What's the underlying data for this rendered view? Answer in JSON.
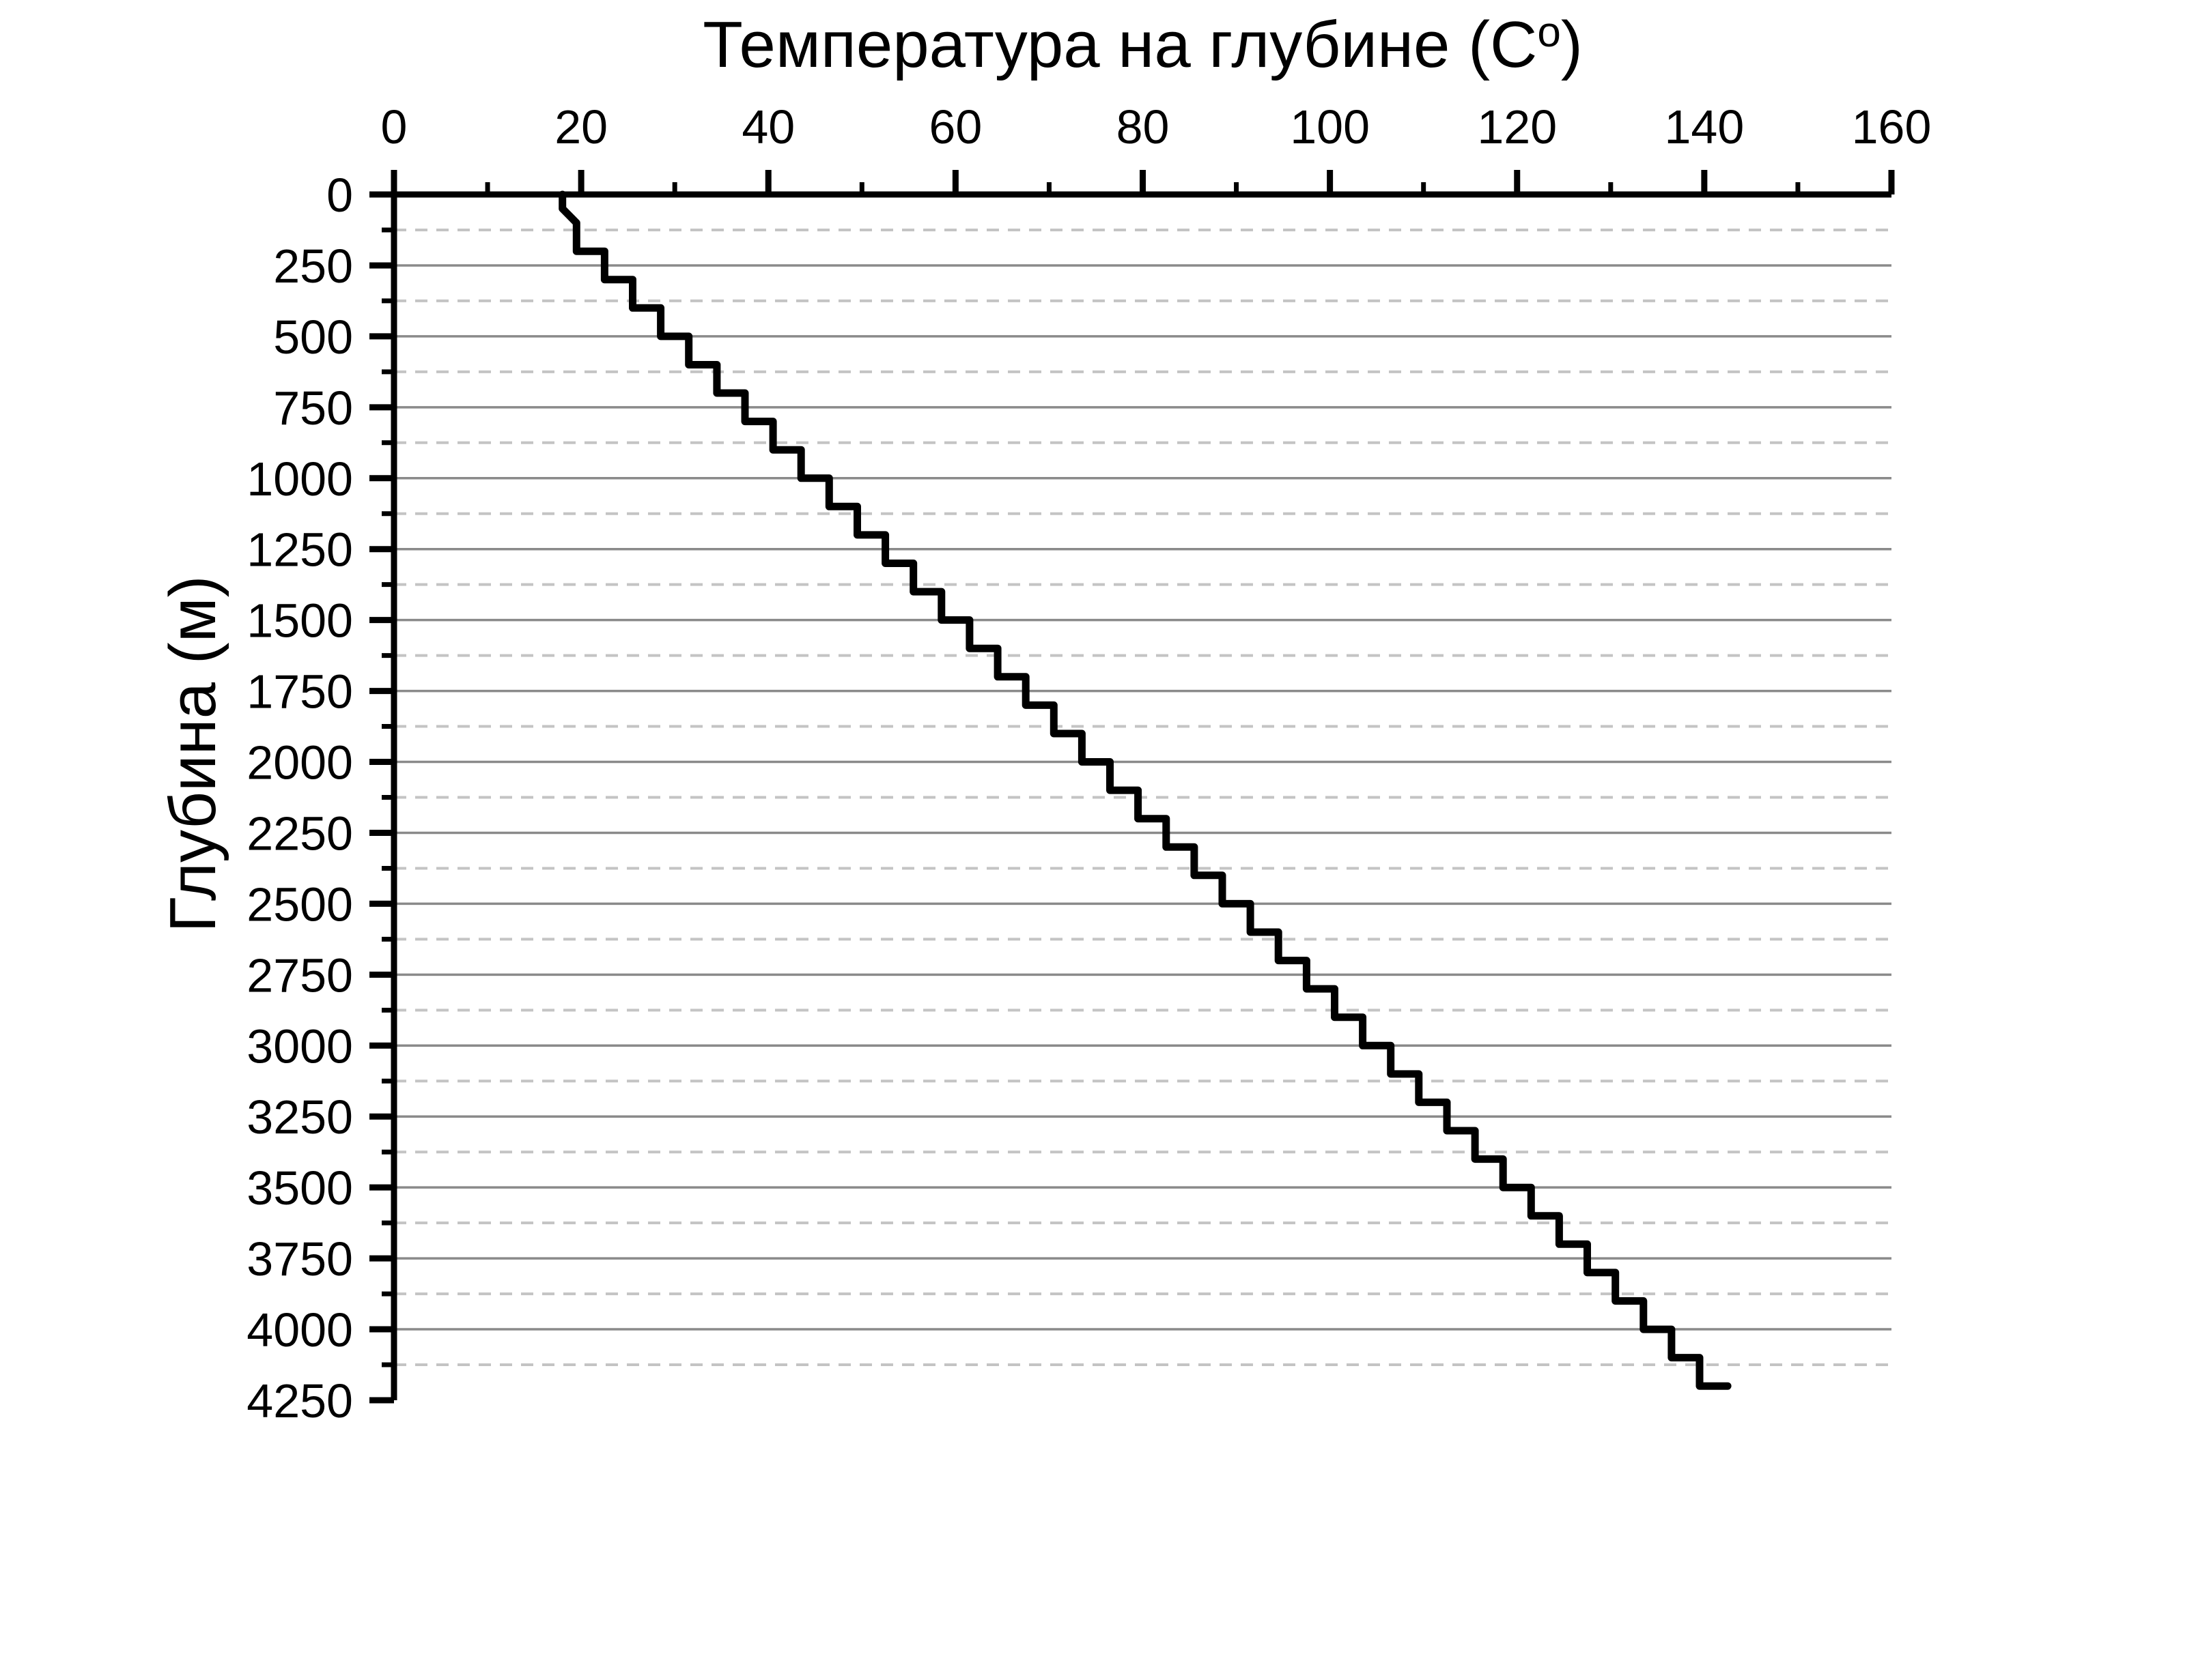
{
  "chart_data": {
    "type": "line",
    "style": "staircase-step-profile",
    "title_main": "Температура на глубине (C",
    "title_sup": "o",
    "title_close": ")",
    "ylabel": "Глубина (м)",
    "x_axis": {
      "position": "top",
      "min": 0,
      "max": 160,
      "major_step": 20,
      "minor_step": 10,
      "tick_labels": [
        "0",
        "20",
        "40",
        "60",
        "80",
        "100",
        "120",
        "140",
        "160"
      ]
    },
    "y_axis": {
      "position": "left",
      "inverted": true,
      "min": 0,
      "max": 4250,
      "major_step": 250,
      "minor_step": 125,
      "tick_labels": [
        "0",
        "250",
        "500",
        "750",
        "1000",
        "1250",
        "1500",
        "1750",
        "2000",
        "2250",
        "2500",
        "2750",
        "3000",
        "3250",
        "3500",
        "3750",
        "4000",
        "4250"
      ]
    },
    "grid": {
      "major": "solid horizontal at every 250 m",
      "minor": "dashed horizontal at every 125 m",
      "vertical": "none"
    },
    "series": [
      {
        "name": "temperature-vs-depth",
        "surface_temp_c": 18,
        "surface_hold_depth_m": 50,
        "interval_start_depth_m": 100,
        "depth_step_m": 100,
        "interval_temps_c": [
          19.5,
          22.5,
          25.5,
          28.5,
          31.5,
          34.5,
          37.5,
          40.5,
          43.5,
          46.5,
          49.5,
          52.5,
          55.5,
          58.5,
          61.5,
          64.5,
          67.5,
          70.5,
          73.5,
          76.5,
          79.5,
          82.5,
          85.5,
          88.5,
          91.5,
          94.5,
          97.5,
          100.5,
          103.5,
          106.5,
          109.5,
          112.5,
          115.5,
          118.5,
          121.5,
          124.5,
          127.5,
          130.5,
          133.5,
          136.5,
          139.5
        ],
        "bottom_point": {
          "depth_m": 4200,
          "temp_c": 142.5
        },
        "color": "#000000"
      }
    ],
    "colors": {
      "background": "#ffffff",
      "axis": "#000000",
      "grid_major": "#8a8a8a",
      "grid_minor": "#c4c4c4",
      "line": "#000000"
    }
  }
}
